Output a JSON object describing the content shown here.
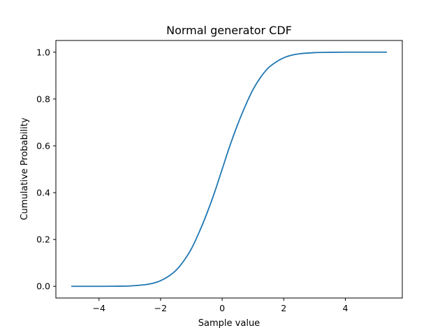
{
  "chart_data": {
    "type": "line",
    "title": "Normal generator CDF",
    "xlabel": "Sample value",
    "ylabel": "Cumulative Probability",
    "xlim": [
      -5.4,
      5.85
    ],
    "ylim": [
      -0.05,
      1.05
    ],
    "xticks": [
      -4,
      -2,
      0,
      2,
      4
    ],
    "xtick_labels": [
      "−4",
      "−2",
      "0",
      "2",
      "4"
    ],
    "yticks": [
      0.0,
      0.2,
      0.4,
      0.6,
      0.8,
      1.0
    ],
    "ytick_labels": [
      "0.0",
      "0.2",
      "0.4",
      "0.6",
      "0.8",
      "1.0"
    ],
    "grid": false,
    "legend": "none",
    "series": [
      {
        "color": "#1f77b4",
        "x": [
          -4.9,
          -4.5,
          -4.0,
          -3.5,
          -3.0,
          -2.5,
          -2.25,
          -2.0,
          -1.75,
          -1.5,
          -1.25,
          -1.0,
          -0.75,
          -0.5,
          -0.25,
          0.0,
          0.25,
          0.5,
          0.75,
          1.0,
          1.25,
          1.5,
          1.75,
          2.0,
          2.25,
          2.5,
          3.0,
          3.5,
          4.0,
          4.5,
          5.0,
          5.35
        ],
        "y": [
          0.0,
          0.0,
          0.0,
          0.0003,
          0.0015,
          0.007,
          0.013,
          0.024,
          0.042,
          0.068,
          0.108,
          0.16,
          0.23,
          0.31,
          0.4,
          0.5,
          0.6,
          0.69,
          0.77,
          0.84,
          0.893,
          0.933,
          0.958,
          0.976,
          0.987,
          0.993,
          0.998,
          0.9995,
          1.0,
          1.0,
          1.0,
          1.0
        ]
      }
    ]
  }
}
